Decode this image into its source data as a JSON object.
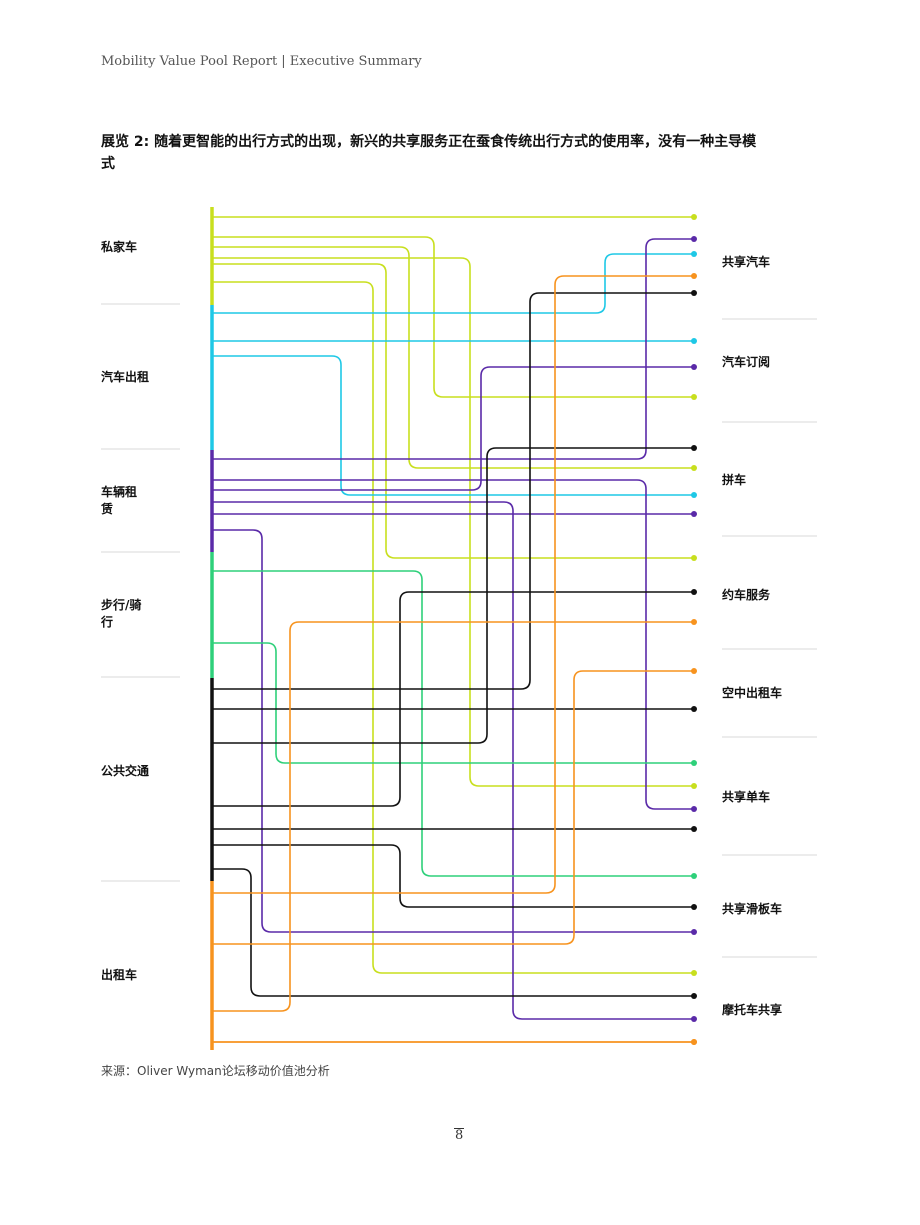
{
  "header": {
    "text": "Mobility Value Pool Report  |  Executive Summary"
  },
  "title": "展览 2: 随着更智能的出行方式的出现，新兴的共享服务正在蚕食传统出行方式的使用率，没有一种主导模式",
  "source": "来源：Oliver Wyman论坛移动价值池分析",
  "page_number": "8",
  "colors": {
    "private_car": "#c8df1e",
    "car_hailing": "#1ec8e6",
    "car_rental": "#5a2aa8",
    "walk_bike": "#2ed07a",
    "public_transit": "#111111",
    "taxi": "#f7931e"
  },
  "chart_data": {
    "type": "flow",
    "sources": [
      {
        "key": "private_car",
        "label": "私家车"
      },
      {
        "key": "car_hailing",
        "label": "汽车出租"
      },
      {
        "key": "car_rental",
        "label": "车辆租赁",
        "lines": [
          "车辆租",
          "赁"
        ]
      },
      {
        "key": "walk_bike",
        "label": "步行/骑行",
        "lines": [
          "步行/骑",
          "行"
        ]
      },
      {
        "key": "public_transit",
        "label": "公共交通"
      },
      {
        "key": "taxi",
        "label": "出租车"
      }
    ],
    "targets": [
      {
        "key": "car_sharing",
        "label": "共享汽车"
      },
      {
        "key": "car_subscription",
        "label": "汽车订阅"
      },
      {
        "key": "carpool",
        "label": "拼车"
      },
      {
        "key": "ride_hailing",
        "label": "约车服务"
      },
      {
        "key": "air_taxi",
        "label": "空中出租车"
      },
      {
        "key": "bike_sharing",
        "label": "共享单车"
      },
      {
        "key": "scooter_sharing",
        "label": "共享滑板车"
      },
      {
        "key": "moto_sharing",
        "label": "摩托车共享"
      }
    ],
    "flows": [
      {
        "from": "private_car",
        "to": "car_sharing"
      },
      {
        "from": "private_car",
        "to": "car_subscription"
      },
      {
        "from": "private_car",
        "to": "carpool"
      },
      {
        "from": "private_car",
        "to": "ride_hailing"
      },
      {
        "from": "private_car",
        "to": "bike_sharing"
      },
      {
        "from": "private_car",
        "to": "moto_sharing"
      },
      {
        "from": "car_hailing",
        "to": "car_sharing"
      },
      {
        "from": "car_hailing",
        "to": "car_subscription"
      },
      {
        "from": "car_hailing",
        "to": "carpool"
      },
      {
        "from": "car_rental",
        "to": "car_sharing"
      },
      {
        "from": "car_rental",
        "to": "car_subscription"
      },
      {
        "from": "car_rental",
        "to": "carpool"
      },
      {
        "from": "car_rental",
        "to": "bike_sharing"
      },
      {
        "from": "car_rental",
        "to": "scooter_sharing"
      },
      {
        "from": "car_rental",
        "to": "moto_sharing"
      },
      {
        "from": "walk_bike",
        "to": "bike_sharing"
      },
      {
        "from": "walk_bike",
        "to": "scooter_sharing"
      },
      {
        "from": "public_transit",
        "to": "car_sharing"
      },
      {
        "from": "public_transit",
        "to": "carpool"
      },
      {
        "from": "public_transit",
        "to": "ride_hailing"
      },
      {
        "from": "public_transit",
        "to": "air_taxi"
      },
      {
        "from": "public_transit",
        "to": "bike_sharing"
      },
      {
        "from": "public_transit",
        "to": "scooter_sharing"
      },
      {
        "from": "public_transit",
        "to": "moto_sharing"
      },
      {
        "from": "taxi",
        "to": "car_sharing"
      },
      {
        "from": "taxi",
        "to": "ride_hailing"
      },
      {
        "from": "taxi",
        "to": "air_taxi"
      },
      {
        "from": "taxi",
        "to": "scooter_sharing"
      },
      {
        "from": "taxi",
        "to": "moto_sharing"
      }
    ]
  }
}
